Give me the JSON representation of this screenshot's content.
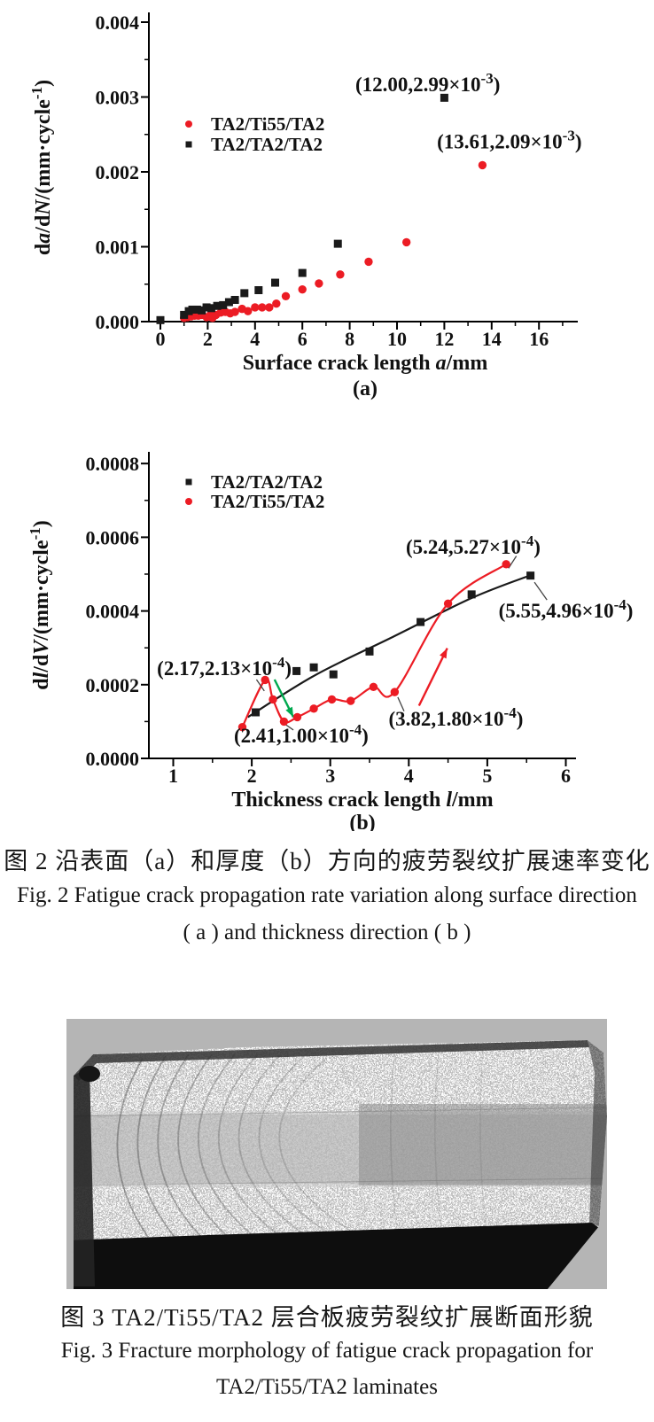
{
  "page": {
    "background": "#ffffff"
  },
  "figure2": {
    "caption_zh": "图 2  沿表面（a）和厚度（b）方向的疲劳裂纹扩展速率变化",
    "caption_en_1": "Fig. 2  Fatigue crack propagation rate variation along surface direction",
    "caption_en_2": "( a ) and thickness direction ( b )"
  },
  "figure3": {
    "caption_zh": "图 3  TA2/Ti55/TA2 层合板疲劳裂纹扩展断面形貌",
    "caption_en_1": "Fig. 3  Fracture morphology of fatigue crack propagation for",
    "caption_en_2": "TA2/Ti55/TA2 laminates",
    "photo": {
      "type": "grayscale photograph",
      "subject": "fracture surface cross-section of TA2/Ti55/TA2 laminate specimen with speckled fatigue fracture bands and beach-mark striations",
      "palette": {
        "backdrop": "#b5b5b5",
        "fracture_speckle_light": "#cccccc",
        "interlayer_band": "#9a9a9a",
        "specimen_side_black": "#0e0e0e"
      }
    }
  },
  "chart_data": [
    {
      "type": "scatter",
      "panel_label": "(a)",
      "xlabel": "Surface crack length a/mm",
      "xlabel_parts": [
        [
          "Surface crack length ",
          ""
        ],
        [
          "a",
          "i"
        ],
        [
          "/mm",
          ""
        ]
      ],
      "ylabel": "da/dN/(mm·cycle⁻¹)",
      "ylabel_parts": [
        [
          "d",
          ""
        ],
        [
          "a",
          "i"
        ],
        [
          "/d",
          ""
        ],
        [
          "N",
          "i"
        ],
        [
          "/(mm·cycle",
          ""
        ],
        [
          "-1",
          "sup"
        ],
        [
          ")",
          ""
        ]
      ],
      "xlim": [
        -0.5,
        17.6
      ],
      "ylim": [
        0,
        0.00413
      ],
      "grid": false,
      "legend_position": "upper-left-inside",
      "xticks": {
        "values": [
          0,
          2,
          4,
          6,
          8,
          10,
          12,
          14,
          16
        ],
        "labels": [
          "0",
          "2",
          "4",
          "6",
          "8",
          "10",
          "12",
          "14",
          "16"
        ],
        "minor": [
          1,
          3,
          5,
          7,
          9,
          11,
          13,
          15,
          17
        ]
      },
      "yticks": {
        "values": [
          0,
          0.001,
          0.002,
          0.003,
          0.004
        ],
        "labels": [
          "0.000",
          "0.001",
          "0.002",
          "0.003",
          "0.004"
        ],
        "minor": [
          0.0005,
          0.0015,
          0.0025,
          0.0035
        ]
      },
      "series": [
        {
          "name": "TA2/Ti55/TA2",
          "marker": "circle",
          "color": "#ec1c24",
          "line": false,
          "points": [
            [
              1.0,
              5e-05
            ],
            [
              1.15,
              6e-05
            ],
            [
              1.3,
              7e-05
            ],
            [
              1.45,
              8e-05
            ],
            [
              1.6,
              8e-05
            ],
            [
              1.75,
              9e-05
            ],
            [
              1.95,
              6e-05
            ],
            [
              2.15,
              0.00012
            ],
            [
              2.2,
              5e-05
            ],
            [
              2.35,
              9e-05
            ],
            [
              2.55,
              0.00012
            ],
            [
              2.75,
              0.00013
            ],
            [
              2.95,
              0.00011
            ],
            [
              3.15,
              0.00013
            ],
            [
              3.45,
              0.00017
            ],
            [
              3.7,
              0.00014
            ],
            [
              4.0,
              0.00019
            ],
            [
              4.3,
              0.00019
            ],
            [
              4.6,
              0.00019
            ],
            [
              4.9,
              0.00024
            ],
            [
              5.3,
              0.00034
            ],
            [
              6.0,
              0.00043
            ],
            [
              6.7,
              0.00051
            ],
            [
              7.6,
              0.00063
            ],
            [
              8.8,
              0.0008
            ],
            [
              10.4,
              0.00106
            ],
            [
              13.61,
              0.00209
            ]
          ]
        },
        {
          "name": "TA2/TA2/TA2",
          "marker": "square",
          "color": "#1a1a1a",
          "line": false,
          "points": [
            [
              0,
              2e-05
            ],
            [
              1.0,
              9e-05
            ],
            [
              1.2,
              0.00014
            ],
            [
              1.35,
              0.00016
            ],
            [
              1.55,
              0.00016
            ],
            [
              1.75,
              0.00015
            ],
            [
              1.95,
              0.00019
            ],
            [
              2.15,
              0.00018
            ],
            [
              2.4,
              0.00021
            ],
            [
              2.65,
              0.00022
            ],
            [
              2.9,
              0.00026
            ],
            [
              3.15,
              0.00029
            ],
            [
              3.55,
              0.00038
            ],
            [
              4.15,
              0.00042
            ],
            [
              4.85,
              0.00052
            ],
            [
              6.0,
              0.00065
            ],
            [
              7.5,
              0.00104
            ],
            [
              12.0,
              0.00299
            ]
          ]
        }
      ],
      "annotations": [
        {
          "text": "(12.00,2.99×10⁻³)",
          "parts": [
            [
              "(12.00,2.99×10",
              ""
            ],
            [
              "-3",
              "sup"
            ],
            [
              ")",
              ""
            ]
          ],
          "x": 11.3,
          "y": 0.00317
        },
        {
          "text": "(13.61,2.09×10⁻³)",
          "parts": [
            [
              "(13.61,2.09×10",
              ""
            ],
            [
              "-3",
              "sup"
            ],
            [
              ")",
              ""
            ]
          ],
          "x": 14.75,
          "y": 0.00241
        }
      ],
      "leaders": [],
      "arrows": []
    },
    {
      "type": "scatter-line",
      "panel_label": "(b)",
      "xlabel": "Thickness crack length l/mm",
      "xlabel_parts": [
        [
          "Thickness crack length ",
          ""
        ],
        [
          "l",
          "i"
        ],
        [
          "/mm",
          ""
        ]
      ],
      "ylabel": "dl/dV/(mm·cycle⁻¹)",
      "ylabel_parts": [
        [
          "d",
          ""
        ],
        [
          "l",
          "i"
        ],
        [
          "/d",
          ""
        ],
        [
          "V",
          "i"
        ],
        [
          "/(mm·cycle",
          ""
        ],
        [
          "-1",
          "sup"
        ],
        [
          ")",
          ""
        ]
      ],
      "xlim": [
        0.69,
        6.13
      ],
      "ylim": [
        0,
        0.000832
      ],
      "grid": false,
      "legend_position": "upper-left-inside",
      "xticks": {
        "values": [
          1,
          2,
          3,
          4,
          5,
          6
        ],
        "labels": [
          "1",
          "2",
          "3",
          "4",
          "5",
          "6"
        ],
        "minor": [
          1.5,
          2.5,
          3.5,
          4.5,
          5.5
        ]
      },
      "yticks": {
        "values": [
          0,
          0.0002,
          0.0004,
          0.0006,
          0.0008
        ],
        "labels": [
          "0.0000",
          "0.0002",
          "0.0004",
          "0.0006",
          "0.0008"
        ],
        "minor": [
          0.0001,
          0.0003,
          0.0005,
          0.0007
        ]
      },
      "series": [
        {
          "name": "TA2/TA2/TA2",
          "marker": "square",
          "color": "#1a1a1a",
          "line": "smooth",
          "line_points": [
            [
              1.95,
              0.000112
            ],
            [
              2.8,
              0.000225
            ],
            [
              3.8,
              0.00033
            ],
            [
              4.8,
              0.000435
            ],
            [
              5.55,
              0.000497
            ]
          ],
          "points": [
            [
              2.05,
              0.000125
            ],
            [
              2.57,
              0.000237
            ],
            [
              2.79,
              0.000247
            ],
            [
              3.04,
              0.000228
            ],
            [
              3.5,
              0.00029
            ],
            [
              4.15,
              0.00037
            ],
            [
              4.8,
              0.000445
            ],
            [
              5.55,
              0.000496
            ]
          ]
        },
        {
          "name": "TA2/Ti55/TA2",
          "marker": "circle",
          "color": "#ec1c24",
          "line": "smooth",
          "points": [
            [
              1.88,
              8.5e-05
            ],
            [
              2.17,
              0.000213
            ],
            [
              2.27,
              0.00016
            ],
            [
              2.41,
              0.0001
            ],
            [
              2.58,
              0.000112
            ],
            [
              2.79,
              0.000135
            ],
            [
              3.02,
              0.00016
            ],
            [
              3.26,
              0.000156
            ],
            [
              3.55,
              0.000194
            ],
            [
              3.82,
              0.00018
            ],
            [
              4.5,
              0.00042
            ],
            [
              5.24,
              0.000527
            ]
          ]
        }
      ],
      "annotations": [
        {
          "text": "(2.17,2.13×10⁻⁴)",
          "parts": [
            [
              "(2.17,2.13×10",
              ""
            ],
            [
              "-4",
              "sup"
            ],
            [
              ")",
              ""
            ]
          ],
          "x": 1.65,
          "y": 0.000245
        },
        {
          "text": "(2.41,1.00×10⁻⁴)",
          "parts": [
            [
              "(2.41,1.00×10",
              ""
            ],
            [
              "-4",
              "sup"
            ],
            [
              ")",
              ""
            ]
          ],
          "x": 2.63,
          "y": 6.2e-05
        },
        {
          "text": "(3.82,1.80×10⁻⁴)",
          "parts": [
            [
              "(3.82,1.80×10",
              ""
            ],
            [
              "-4",
              "sup"
            ],
            [
              ")",
              ""
            ]
          ],
          "x": 4.6,
          "y": 0.000108
        },
        {
          "text": "(5.24,5.27×10⁻⁴)",
          "parts": [
            [
              "(5.24,5.27×10",
              ""
            ],
            [
              "-4",
              "sup"
            ],
            [
              ")",
              ""
            ]
          ],
          "x": 4.82,
          "y": 0.000575
        },
        {
          "text": "(5.55,4.96×10⁻⁴)",
          "parts": [
            [
              "(5.55,4.96×10",
              ""
            ],
            [
              "-4",
              "sup"
            ],
            [
              ")",
              ""
            ]
          ],
          "x": 6.0,
          "y": 0.000402
        }
      ],
      "leaders": [
        {
          "x1": 2.06,
          "y1": 0.000214,
          "x2": 2.16,
          "y2": 0.000183
        },
        {
          "x1": 2.43,
          "y1": 9.2e-05,
          "x2": 2.53,
          "y2": 7.7e-05
        },
        {
          "x1": 3.86,
          "y1": 0.000166,
          "x2": 3.94,
          "y2": 0.000128
        },
        {
          "x1": 5.37,
          "y1": 0.000549,
          "x2": 5.27,
          "y2": 0.000516
        },
        {
          "x1": 5.6,
          "y1": 0.000478,
          "x2": 5.76,
          "y2": 0.00043
        }
      ],
      "arrows": [
        {
          "x1": 2.29,
          "y1": 0.000214,
          "x2": 2.53,
          "y2": 0.000112,
          "color": "#00a94f"
        },
        {
          "x1": 4.13,
          "y1": 0.000143,
          "x2": 4.49,
          "y2": 0.000299,
          "color": "#ec1c24"
        }
      ]
    }
  ]
}
